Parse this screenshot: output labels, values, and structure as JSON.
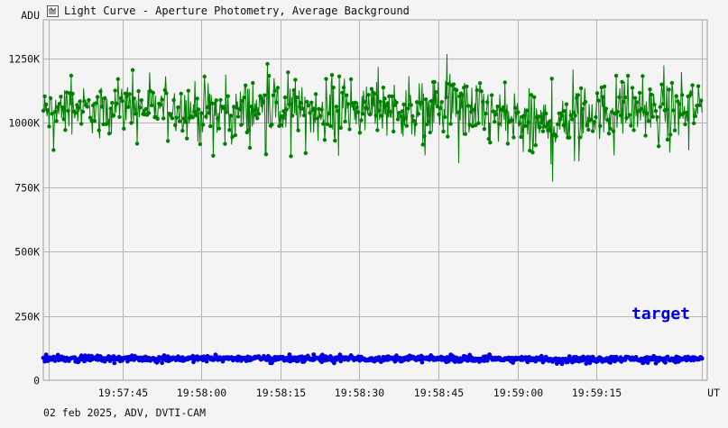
{
  "window": {
    "title": "Light Curve - Aperture Photometry, Average Background"
  },
  "footer": {
    "text": "02 feb 2025, ADV, DVTI-CAM"
  },
  "chart_data": {
    "type": "line",
    "title": "Light Curve - Aperture Photometry, Average Background",
    "xlabel": "UT",
    "ylabel": "ADU",
    "x_range": [
      "19:57:30",
      "19:59:36"
    ],
    "ylim": [
      0,
      1400000
    ],
    "y_ticks": [
      0,
      250000,
      500000,
      750000,
      1000000,
      1250000
    ],
    "y_tick_labels": [
      "0",
      "250K",
      "500K",
      "750K",
      "1000K",
      "1250K"
    ],
    "x_ticks": [
      "19:57:45",
      "19:58:00",
      "19:58:15",
      "19:58:30",
      "19:58:45",
      "19:59:00",
      "19:59:15"
    ],
    "grid": true,
    "legend_placement": "bottom-right",
    "series": [
      {
        "color": "#008000",
        "x": [
          "19:57:30",
          "19:57:35",
          "19:57:40",
          "19:57:45",
          "19:57:50",
          "19:57:55",
          "19:58:00",
          "19:58:05",
          "19:58:10",
          "19:58:15",
          "19:58:20",
          "19:58:25",
          "19:58:30",
          "19:58:35",
          "19:58:40",
          "19:58:45",
          "19:58:50",
          "19:58:55",
          "19:59:00",
          "19:59:05",
          "19:59:10",
          "19:59:15",
          "19:59:20",
          "19:59:25",
          "19:59:30",
          "19:59:35"
        ],
        "values": [
          1040000,
          1060000,
          1050000,
          1070000,
          1055000,
          1065000,
          1045000,
          1040000,
          1060000,
          1050000,
          1055000,
          1045000,
          1050000,
          1060000,
          1040000,
          1055000,
          1065000,
          1030000,
          1010000,
          990000,
          1030000,
          1040000,
          1050000,
          1045000,
          1040000,
          1050000
        ],
        "max_values": [
          1180000,
          1200000,
          1190000,
          1210000,
          1200000,
          1220000,
          1240000,
          1200000,
          1250000,
          1210000,
          1200000,
          1230000,
          1210000,
          1250000,
          1220000,
          1290000,
          1250000,
          1220000,
          1200000,
          1190000,
          1210000,
          1230000,
          1240000,
          1210000,
          1250000,
          1310000
        ],
        "min_values": [
          880000,
          900000,
          890000,
          910000,
          900000,
          910000,
          820000,
          780000,
          860000,
          790000,
          870000,
          820000,
          880000,
          900000,
          860000,
          850000,
          820000,
          800000,
          710000,
          720000,
          820000,
          850000,
          870000,
          840000,
          800000,
          960000
        ]
      },
      {
        "name": "target",
        "color": "#0000e0",
        "x": [
          "19:57:30",
          "19:57:40",
          "19:57:50",
          "19:58:00",
          "19:58:10",
          "19:58:20",
          "19:58:30",
          "19:58:40",
          "19:58:50",
          "19:59:00",
          "19:59:10",
          "19:59:20",
          "19:59:30",
          "19:59:35"
        ],
        "values": [
          85000,
          86000,
          84000,
          85000,
          86000,
          84000,
          83000,
          85000,
          82000,
          83000,
          80000,
          84000,
          82000,
          85000
        ],
        "max_values": [
          100000,
          100000,
          100000,
          100000,
          100000,
          100000,
          100000,
          100000,
          100000,
          100000,
          100000,
          100000,
          100000,
          100000
        ],
        "min_values": [
          65000,
          65000,
          65000,
          65000,
          65000,
          65000,
          65000,
          65000,
          65000,
          65000,
          62000,
          65000,
          65000,
          65000
        ]
      }
    ]
  }
}
